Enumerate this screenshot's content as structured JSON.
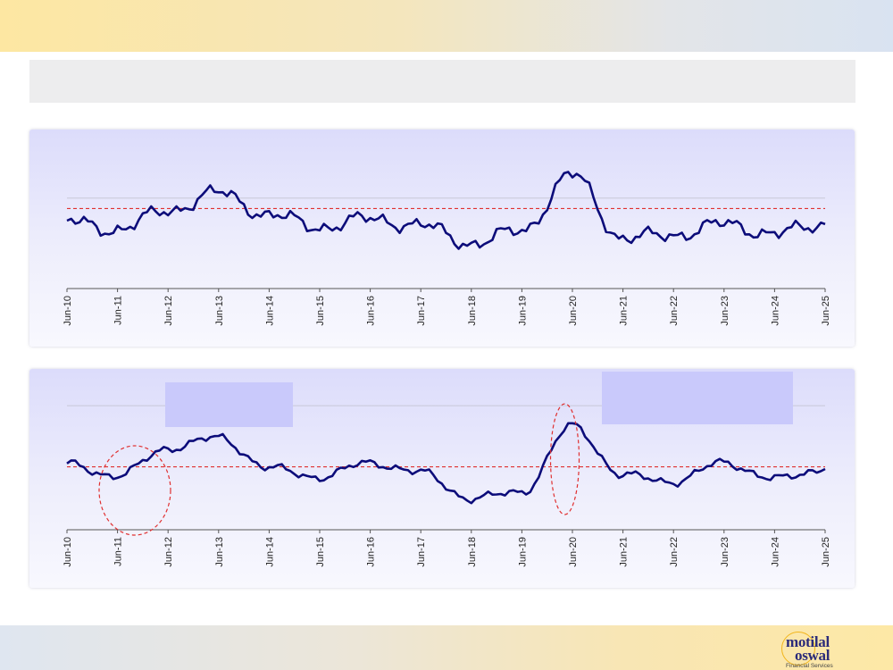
{
  "header": {
    "title": ""
  },
  "footer": {
    "logo_line1": "motilal",
    "logo_line2": "oswal",
    "logo_sub": "Financial Services"
  },
  "chart_data": [
    {
      "type": "line",
      "x": [
        "Jun-10",
        "Jun-11",
        "Jun-12",
        "Jun-13",
        "Jun-14",
        "Jun-15",
        "Jun-16",
        "Jun-17",
        "Jun-18",
        "Jun-19",
        "Jun-20",
        "Jun-21",
        "Jun-22",
        "Jun-23",
        "Jun-24",
        "Jun-25"
      ],
      "series": [
        {
          "values": [
            55.0,
            52.0,
            59.3,
            66.0,
            57.5,
            53.0,
            56.0,
            53.5,
            46.7,
            51.5,
            73.0,
            48.5,
            50.0,
            54.0,
            50.3,
            54.0
          ]
        }
      ],
      "reference_lines": [
        {
          "style": "red-dashed",
          "y": 60.0
        },
        {
          "style": "gray-gridline",
          "y": 64.0
        }
      ],
      "ylim": [
        30,
        80
      ],
      "grid": false,
      "line_color": "#0c0c7a"
    },
    {
      "type": "line",
      "x": [
        "Jun-10",
        "Jun-11",
        "Jun-12",
        "Jun-13",
        "Jun-14",
        "Jun-15",
        "Jun-16",
        "Jun-17",
        "Jun-18",
        "Jun-19",
        "Jun-20",
        "Jun-21",
        "Jun-22",
        "Jun-23",
        "Jun-24",
        "Jun-25"
      ],
      "series": [
        {
          "values": [
            44.0,
            35.5,
            55.0,
            62.0,
            41.0,
            35.0,
            45.0,
            38.0,
            20.0,
            25.0,
            70.0,
            36.0,
            32.0,
            45.0,
            33.5,
            40.5
          ]
        }
      ],
      "reference_lines": [
        {
          "style": "red-dashed",
          "y": 42.0
        },
        {
          "style": "gray-gridline",
          "y": 84.0
        }
      ],
      "ylim": [
        0,
        100
      ],
      "highlights": [
        "Jun-11 to Jun-12",
        "Jun-20"
      ],
      "grid": false,
      "line_color": "#0c0c7a"
    }
  ]
}
